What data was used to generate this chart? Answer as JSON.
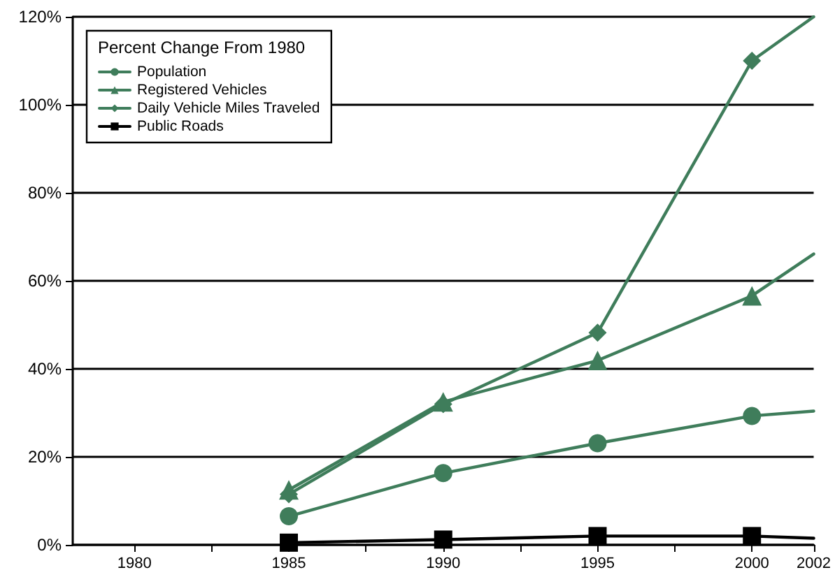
{
  "chart_data": {
    "type": "line",
    "legend_title": "Percent Change From 1980",
    "x": [
      1985,
      1990,
      1995,
      2000,
      2002
    ],
    "series": [
      {
        "name": "Population",
        "color": "#3f7d5b",
        "marker": "circle",
        "values": [
          6.5,
          16.3,
          23.1,
          29.3,
          30.4
        ]
      },
      {
        "name": "Registered Vehicles",
        "color": "#3f7d5b",
        "marker": "triangle",
        "values": [
          12.5,
          32.5,
          41.9,
          56.6,
          66.1
        ]
      },
      {
        "name": "Daily Vehicle Miles Traveled",
        "color": "#3f7d5b",
        "marker": "diamond",
        "values": [
          11.5,
          32,
          48.2,
          110,
          120
        ]
      },
      {
        "name": "Public Roads",
        "color": "#000000",
        "marker": "square",
        "values": [
          0.5,
          1.2,
          2,
          2,
          1.5
        ]
      }
    ],
    "xlim": [
      1978,
      2002
    ],
    "xticks": [
      1980,
      {
        "value": 1982.5,
        "label": null
      },
      1985,
      {
        "value": 1987.5,
        "label": null
      },
      1990,
      {
        "value": 1992.5,
        "label": null
      },
      1995,
      {
        "value": 1997.5,
        "label": null
      },
      2000,
      2002
    ],
    "ylim": [
      0,
      120
    ],
    "yticks": [
      {
        "value": 0,
        "label": "0%"
      },
      {
        "value": 20,
        "label": "20%"
      },
      {
        "value": 40,
        "label": "40%"
      },
      {
        "value": 60,
        "label": "60%"
      },
      {
        "value": 80,
        "label": "80%"
      },
      {
        "value": 100,
        "label": "100%"
      },
      {
        "value": 120,
        "label": "120%"
      }
    ],
    "grid": "y",
    "legend": "top left",
    "line_style": "solid"
  }
}
